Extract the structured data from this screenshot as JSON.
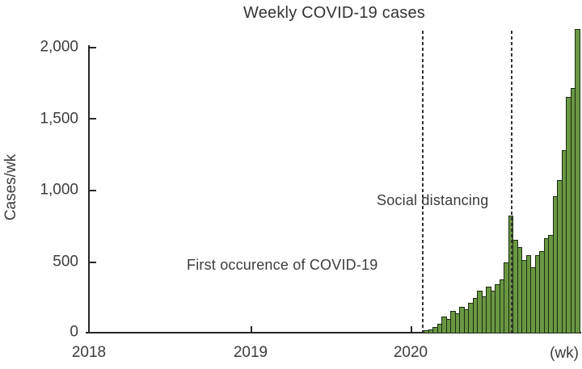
{
  "title": "Weekly COVID-19 cases",
  "y_axis": {
    "label": "Cases/wk",
    "ticks": [
      "2,000",
      "1,500",
      "1,000",
      "500",
      "0"
    ]
  },
  "x_axis": {
    "ticks": [
      "2018",
      "2019",
      "2020"
    ],
    "unit_label": "(wk)"
  },
  "annotations": {
    "first_occurrence": "First occurence of COVID-19",
    "social_distancing": "Social distancing"
  },
  "colors": {
    "bar_fill": "#699742",
    "bar_stroke": "#1c2b12",
    "axis": "#262626",
    "text": "#3c3c3c",
    "dashed_line": "#343434",
    "background": "#ffffff"
  },
  "chart_data": {
    "type": "bar",
    "title": "Weekly COVID-19 cases",
    "ylabel": "Cases/wk",
    "x_unit": "(wk)",
    "x_tick_labels": [
      "2018",
      "2019",
      "2020"
    ],
    "y_tick_values": [
      0,
      500,
      1000,
      1500,
      2000
    ],
    "ylim": [
      0,
      2000
    ],
    "grid": false,
    "legend": "none",
    "bars_start": "just after the first-occurrence dashed line (early 2020)",
    "bar_interval": "1 week per bar",
    "weekly_values": [
      15,
      25,
      40,
      60,
      110,
      95,
      150,
      135,
      180,
      165,
      210,
      240,
      290,
      255,
      320,
      295,
      340,
      370,
      490,
      815,
      645,
      595,
      505,
      540,
      455,
      540,
      570,
      655,
      680,
      950,
      1060,
      1270,
      1640,
      1700,
      2110
    ],
    "events": [
      {
        "label": "First occurence of COVID-19",
        "marker": "vertical dashed line",
        "approx_x": "early 2020"
      },
      {
        "label": "Social distancing",
        "marker": "vertical dashed line",
        "approx_x": "aug 2020, coincides with 815 peak bar"
      }
    ]
  }
}
